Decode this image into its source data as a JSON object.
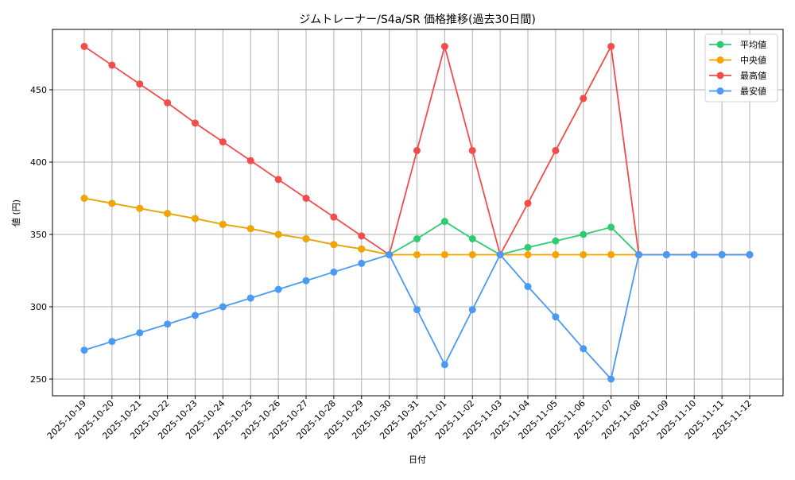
{
  "chart_data": {
    "type": "line",
    "title": "ジムトレーナー/S4a/SR 価格推移(過去30日間)",
    "xlabel": "日付",
    "ylabel": "値 (円)",
    "ylim": [
      239,
      489
    ],
    "yticks": [
      250,
      300,
      350,
      400,
      450
    ],
    "grid": true,
    "legend_position": "upper right",
    "categories": [
      "2025-10-19",
      "2025-10-20",
      "2025-10-21",
      "2025-10-22",
      "2025-10-23",
      "2025-10-24",
      "2025-10-25",
      "2025-10-26",
      "2025-10-27",
      "2025-10-28",
      "2025-10-29",
      "2025-10-30",
      "2025-10-31",
      "2025-11-01",
      "2025-11-02",
      "2025-11-03",
      "2025-11-04",
      "2025-11-05",
      "2025-11-06",
      "2025-11-07",
      "2025-11-08",
      "2025-11-09",
      "2025-11-10",
      "2025-11-11",
      "2025-11-12"
    ],
    "series": [
      {
        "name": "平均値",
        "color": "#2ecc71",
        "values": [
          375,
          371.5,
          368,
          364.5,
          361,
          357,
          354,
          350,
          347,
          343,
          340,
          336,
          347,
          359,
          347,
          336,
          341,
          345.5,
          350,
          355,
          336,
          336,
          336,
          336,
          336
        ]
      },
      {
        "name": "中央値",
        "color": "#f5a300",
        "values": [
          375,
          371.5,
          368,
          364.5,
          361,
          357,
          354,
          350,
          347,
          343,
          340,
          336,
          336,
          336,
          336,
          336,
          336,
          336,
          336,
          336,
          336,
          336,
          336,
          336,
          336
        ]
      },
      {
        "name": "最高値",
        "color": "#f44b4b",
        "values": [
          480,
          467,
          454,
          441,
          427,
          414,
          401,
          388,
          375,
          362,
          349,
          336,
          408,
          480,
          408,
          336,
          371.5,
          408,
          444,
          480,
          336,
          336,
          336,
          336,
          336
        ]
      },
      {
        "name": "最安値",
        "color": "#4a9af5",
        "values": [
          270,
          276,
          282,
          288,
          294,
          300,
          306,
          312,
          318,
          324,
          330,
          336,
          298,
          260,
          298,
          336,
          314,
          293,
          271,
          250,
          336,
          336,
          336,
          336,
          336
        ]
      }
    ]
  }
}
